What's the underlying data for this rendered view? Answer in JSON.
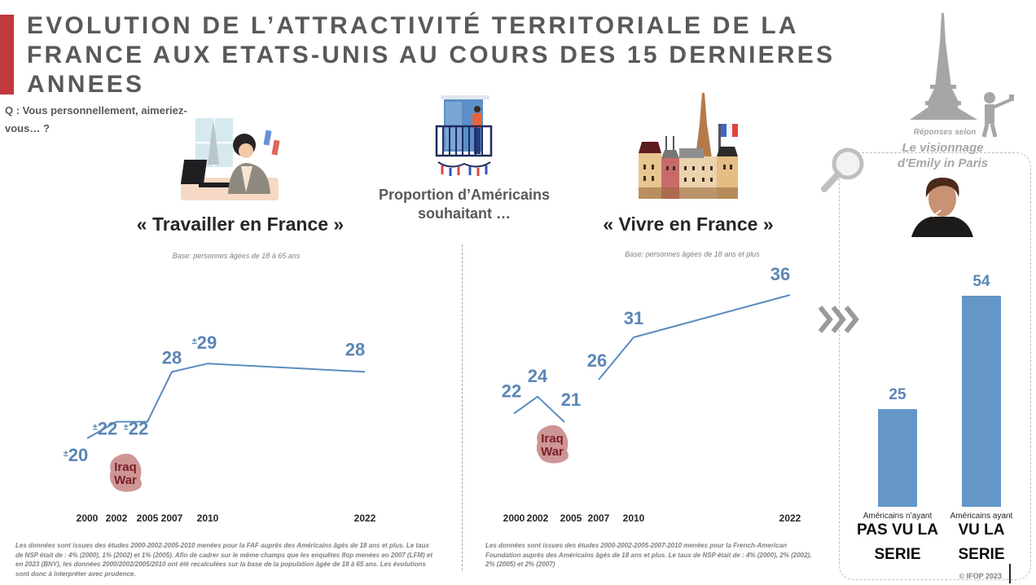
{
  "header": {
    "title": "EVOLUTION DE L’ATTRACTIVITÉ TERRITORIALE DE LA FRANCE AUX ETATS-UNIS AU COURS DES 15 DERNIERES ANNEES",
    "accent_color": "#c0393d",
    "question": "Q : Vous personnellement, aimeriez-vous… ?",
    "center_label": "Proportion d’Américains souhaitant …"
  },
  "illustrations": {
    "work": "woman-working-laptop-illustration",
    "balcony": "man-on-balcony-illustration",
    "paris": "paris-buildings-eiffel-tower-illustration",
    "eiffel_selfie": "eiffel-tower-selfie-icon",
    "magnifier": "magnifying-glass-icon",
    "portrait": "actor-portrait-photo"
  },
  "colors": {
    "line": "#5b8bbf",
    "label": "#5b86b5",
    "bar": "#6496c8",
    "iraq_badge": "#c98a8a",
    "iraq_text": "#7b1f26"
  },
  "chart_data": [
    {
      "type": "line",
      "title": "« Travailler en France »",
      "subtitle": "Base: personnes âgées de 18 à 65 ans",
      "x": [
        "2000",
        "2002",
        "2005",
        "2007",
        "2010",
        "2022"
      ],
      "x_numeric": [
        2000,
        2002,
        2005,
        2007,
        2010,
        2022
      ],
      "series": [
        {
          "name": "Travailler en France",
          "values": [
            20,
            22,
            22,
            28,
            29,
            28
          ]
        }
      ],
      "data_labels": [
        "±20",
        "±22",
        "±22",
        "28",
        "±29",
        "28"
      ],
      "annotation": "Iraq War",
      "footnote": "Les données sont issues des études 2000-2002-2005-2010 menées pour la FAF auprès des Américains âgés de 18 ans et plus. Le taux de NSP était de : 4% (2000), 1% (2002) et 1% (2005). Afin de cadrer sur le même champs que les enquêtes Ifop menées en 2007 (LFM) et en 2023 (BNY), les données 2000/2002/2005/2010 ont été recalculées sur la base de la population âgée de 18 à 65 ans. Les évolutions sont donc à interpréter avec prudence.",
      "grid": false
    },
    {
      "type": "line",
      "title": "« Vivre en France »",
      "subtitle": "Base: personnes âgées de 18 ans et plus",
      "x": [
        "2000",
        "2002",
        "2005",
        "2007",
        "2010",
        "2022"
      ],
      "x_numeric": [
        2000,
        2002,
        2005,
        2007,
        2010,
        2022
      ],
      "series": [
        {
          "name": "Vivre en France",
          "values": [
            22,
            24,
            21,
            26,
            31,
            36
          ]
        }
      ],
      "data_labels": [
        "22",
        "24",
        "21",
        "26",
        "31",
        "36"
      ],
      "annotation": "Iraq War",
      "footnote": "Les données sont issues des études 2000-2002-2005-2007-2010 menées pour la French-American Foundation auprès des Américains âgés de 18 ans et plus. Le taux de NSP était de : 4% (2000), 2% (2002), 2% (2005) et 2% (2007)",
      "grid": false
    },
    {
      "type": "bar",
      "title": "Réponses selon Le visionnage d'Emily in Paris",
      "categories": [
        "Américains n’ayant PAS VU LA SERIE",
        "Américains ayant VU LA SERIE"
      ],
      "values": [
        25,
        54
      ],
      "ylim": [
        0,
        60
      ],
      "grid": false
    }
  ],
  "panel": {
    "responses_label": "Réponses selon",
    "title_line1": "Le visionnage",
    "title_line2": "d'Emily in Paris",
    "bars": [
      {
        "small": "Américains n’ayant",
        "big1": "PAS VU LA",
        "big2": "SERIE"
      },
      {
        "small": "Américains ayant",
        "big1": "VU LA",
        "big2": "SERIE"
      }
    ]
  },
  "footer": {
    "copyright": "© IFOP 2023"
  }
}
